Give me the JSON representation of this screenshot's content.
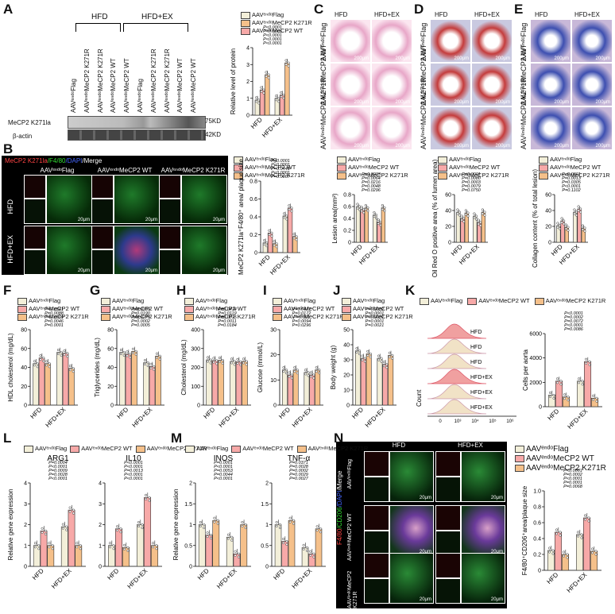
{
  "panel_letters": [
    "A",
    "B",
    "C",
    "D",
    "E",
    "F",
    "G",
    "H",
    "I",
    "J",
    "K",
    "L",
    "M",
    "N"
  ],
  "groups": {
    "hfd": "HFD",
    "hfdex": "HFD+EX"
  },
  "conditions": {
    "flag": "AAVᵉⁿᵈᵒFlag",
    "wt": "AAVᵉⁿᵈᵒMeCP2 WT",
    "k271r": "AAVᵉⁿᵈᵒMeCP2 K271R"
  },
  "colors": {
    "flag": "#f3efd9",
    "wt": "#f7a9a8",
    "k271r": "#f5c08a",
    "red": "#e0403a",
    "green": "#2e9e3a",
    "blue": "#3a50c8",
    "he": "#e8a7c8",
    "oro": "#c43c3c",
    "masson": "#3d4fb0"
  },
  "panelA": {
    "lanes": [
      "AAVᵉⁿᵈᵒFlag",
      "AAVᵉⁿᵈᵒMeCP2 K271R",
      "AAVᵉⁿᵈᵒMeCP2 K271R",
      "AAVᵉⁿᵈᵒMeCP2 WT",
      "AAVᵉⁿᵈᵒMeCP2 WT",
      "AAVᵉⁿᵈᵒFlag",
      "AAVᵉⁿᵈᵒMeCP2 K271R",
      "AAVᵉⁿᵈᵒMeCP2 K271R",
      "AAVᵉⁿᵈᵒMeCP2 WT",
      "AAVᵉⁿᵈᵒMeCP2 WT"
    ],
    "bands": [
      {
        "name": "MeCP2 K271la",
        "kd": "75KD"
      },
      {
        "name": "β-actin",
        "kd": "42KD"
      }
    ]
  },
  "panelB": {
    "stain_title": {
      "a": "MeCP2 K271la",
      "b": "/F4/80",
      "c": "/DAPI",
      "d": "/Merge"
    },
    "columns": [
      "AAVᵉⁿᵈᵒFlag",
      "AAVᵉⁿᵈᵒMeCP2 WT",
      "AAVᵉⁿᵈᵒMeCP2 K271R"
    ],
    "rows": [
      "HFD",
      "HFD+EX"
    ],
    "scale": "20μm"
  },
  "panelC": {
    "columns": [
      "HFD",
      "HFD+EX"
    ],
    "rows": [
      "AAVᵉⁿᵈᵒFlag",
      "AAVᵉⁿᵈᵒMeCP2 WT",
      "AAVᵉⁿᵈᵒMeCP2 K271R"
    ],
    "row_label_flag": "AAVᵉⁿᵈᵒFlag",
    "scale": "200μm"
  },
  "panelN": {
    "columns": [
      "HFD",
      "HFD+EX"
    ],
    "rows": [
      "AAVᵉⁿᵈᵒFlag",
      "AAVᵉⁿᵈᵒMeCP2 WT",
      "AAVᵉⁿᵈᵒMeCP2 K271R"
    ],
    "stain_title": {
      "a": "F4/80",
      "b": "/CD206",
      "c": "/DAPI",
      "d": "/Merge"
    },
    "scale": "20μm"
  },
  "panelK": {
    "hist_labels": [
      "HFD",
      "HFD",
      "HFD",
      "HFD+EX",
      "HFD+EX",
      "HFD+EX"
    ],
    "xaxis": "Count",
    "xticks": [
      "0",
      "10³",
      "10⁴",
      "10⁵",
      "10⁶"
    ]
  },
  "chart_data": [
    {
      "id": "A",
      "type": "bar",
      "ylabel": "Relative level of protein",
      "ylim": [
        0,
        4
      ],
      "yticks": [
        0,
        1,
        2,
        3,
        4
      ],
      "categories": [
        "HFD",
        "HFD+EX"
      ],
      "series": [
        {
          "name": "AAVᵉⁿᵈᵒFlag",
          "values": [
            0.9,
            1.0
          ]
        },
        {
          "name": "AAVᵉⁿᵈᵒMeCP2 K271R",
          "values": [
            1.5,
            1.2
          ]
        },
        {
          "name": "AAVᵉⁿᵈᵒMeCP2 WT",
          "values": [
            2.4,
            3.1
          ]
        }
      ],
      "pvalues": [
        "P<0.0001",
        "P<0.0001",
        "P<0.0001",
        "P<0.0001",
        "P<0.0001"
      ]
    },
    {
      "id": "B",
      "type": "bar",
      "ylabel": "MeCP2 K271la⁺F4/80⁺ area/ plaque size",
      "ylim": [
        0,
        0.8
      ],
      "yticks": [
        0.0,
        0.2,
        0.4,
        0.6,
        0.8
      ],
      "categories": [
        "HFD",
        "HFD+EX"
      ],
      "series": [
        {
          "name": "AAVᵉⁿᵈᵒFlag",
          "values": [
            0.11,
            0.41
          ]
        },
        {
          "name": "AAVᵉⁿᵈᵒMeCP2 WT",
          "values": [
            0.22,
            0.5
          ]
        },
        {
          "name": "AAVᵉⁿᵈᵒMeCP2 K271R",
          "values": [
            0.1,
            0.18
          ]
        }
      ],
      "pvalues": [
        "P=0.0007",
        "P<0.0001",
        "P=0.0449",
        "P<0.0001",
        "P<0.0001"
      ]
    },
    {
      "id": "C",
      "type": "bar",
      "ylabel": "Lesion area(mm²)",
      "ylim": [
        0,
        0.8
      ],
      "yticks": [
        0.0,
        0.2,
        0.4,
        0.6,
        0.8
      ],
      "categories": [
        "HFD",
        "HFD+EX"
      ],
      "series": [
        {
          "name": "AAVᵉⁿᵈᵒFlag",
          "values": [
            0.6,
            0.46
          ]
        },
        {
          "name": "AAVᵉⁿᵈᵒMeCP2 WT",
          "values": [
            0.55,
            0.34
          ]
        },
        {
          "name": "AAVᵉⁿᵈᵒMeCP2 K271R",
          "values": [
            0.58,
            0.58
          ]
        }
      ],
      "pvalues": [
        "P=0.0296",
        "P=0.0048",
        "P=0.0216",
        "P=0.0064",
        "P=0.0003"
      ]
    },
    {
      "id": "D",
      "type": "bar",
      "ylabel": "Oil Red O positive area (% of lumen area)",
      "ylim": [
        0,
        60
      ],
      "yticks": [
        0,
        20,
        40,
        60
      ],
      "categories": [
        "HFD",
        "HFD+EX"
      ],
      "series": [
        {
          "name": "AAVᵉⁿᵈᵒFlag",
          "values": [
            38,
            33
          ]
        },
        {
          "name": "AAVᵉⁿᵈᵒMeCP2 WT",
          "values": [
            30,
            25
          ]
        },
        {
          "name": "AAVᵉⁿᵈᵒMeCP2 K271R",
          "values": [
            37,
            38
          ]
        }
      ],
      "pvalues": [
        "P=0.0750",
        "P=0.0079",
        "P=0.0003",
        "P=0.0080",
        "P=0.0001"
      ]
    },
    {
      "id": "E",
      "type": "bar",
      "ylabel": "Collagen content (% of total lesion)",
      "ylim": [
        0,
        60
      ],
      "yticks": [
        0,
        20,
        40,
        60
      ],
      "categories": [
        "HFD",
        "HFD+EX"
      ],
      "series": [
        {
          "name": "AAVᵉⁿᵈᵒFlag",
          "values": [
            21,
            38
          ]
        },
        {
          "name": "AAVᵉⁿᵈᵒMeCP2 WT",
          "values": [
            27,
            42
          ]
        },
        {
          "name": "AAVᵉⁿᵈᵒMeCP2 K271R",
          "values": [
            19,
            18
          ]
        }
      ],
      "pvalues": [
        "P=0.1102",
        "P<0.0001",
        "P=0.0305",
        "P=0.0013",
        "P<0.0001"
      ]
    },
    {
      "id": "F",
      "type": "bar",
      "ylabel": "HDL cholesterol (mg/dL)",
      "ylim": [
        0,
        80
      ],
      "yticks": [
        0,
        20,
        40,
        60,
        80
      ],
      "categories": [
        "HFD",
        "HFD+EX"
      ],
      "series": [
        {
          "name": "AAVᵉⁿᵈᵒFlag",
          "values": [
            44,
            56
          ]
        },
        {
          "name": "AAVᵉⁿᵈᵒMeCP2 WT",
          "values": [
            50,
            55
          ]
        },
        {
          "name": "AAVᵉⁿᵈᵒMeCP2 K271R",
          "values": [
            44,
            39
          ]
        }
      ],
      "pvalues": [
        "P=0.0001",
        "P=0.0046",
        "P=0.0009",
        "P=0.0088",
        "P=0.0341"
      ]
    },
    {
      "id": "G",
      "type": "bar",
      "ylabel": "Triglycerides (mg/dL)",
      "ylim": [
        0,
        80
      ],
      "yticks": [
        0,
        20,
        40,
        60,
        80
      ],
      "categories": [
        "HFD",
        "HFD+EX"
      ],
      "series": [
        {
          "name": "AAVᵉⁿᵈᵒFlag",
          "values": [
            56,
            45
          ]
        },
        {
          "name": "AAVᵉⁿᵈᵒMeCP2 WT",
          "values": [
            54,
            41
          ]
        },
        {
          "name": "AAVᵉⁿᵈᵒMeCP2 K271R",
          "values": [
            57,
            52
          ]
        }
      ],
      "pvalues": [
        "P=0.0005",
        "P=0.0002",
        "P=0.0278",
        "P=0.0190",
        "P=0.0359"
      ]
    },
    {
      "id": "H",
      "type": "bar",
      "ylabel": "Cholesterol (mg/dL)",
      "ylim": [
        0,
        400
      ],
      "yticks": [
        0,
        100,
        200,
        300,
        400
      ],
      "categories": [
        "HFD",
        "HFD+EX"
      ],
      "series": [
        {
          "name": "AAVᵉⁿᵈᵒFlag",
          "values": [
            240,
            232
          ]
        },
        {
          "name": "AAVᵉⁿᵈᵒMeCP2 WT",
          "values": [
            236,
            230
          ]
        },
        {
          "name": "AAVᵉⁿᵈᵒMeCP2 K271R",
          "values": [
            238,
            232
          ]
        }
      ],
      "pvalues": [
        "P=0.0184",
        "P=0.0011",
        "P=0.0015",
        "P=0.0119",
        "P=0.0474"
      ]
    },
    {
      "id": "I",
      "type": "bar",
      "ylabel": "Glucose (mmol/L)",
      "ylim": [
        0,
        30
      ],
      "yticks": [
        0,
        10,
        20,
        30
      ],
      "categories": [
        "HFD",
        "HFD+EX"
      ],
      "series": [
        {
          "name": "AAVᵉⁿᵈᵒFlag",
          "values": [
            14,
            13
          ]
        },
        {
          "name": "AAVᵉⁿᵈᵒMeCP2 WT",
          "values": [
            12,
            12
          ]
        },
        {
          "name": "AAVᵉⁿᵈᵒMeCP2 K271R",
          "values": [
            14,
            14
          ]
        }
      ],
      "pvalues": [
        "P=0.0296",
        "P=0.0094",
        "P=0.001",
        "P=0.0172",
        "P=0.0471"
      ]
    },
    {
      "id": "J",
      "type": "bar",
      "ylabel": "Body weight (g)",
      "ylim": [
        0,
        50
      ],
      "yticks": [
        0,
        10,
        20,
        30,
        40,
        50
      ],
      "categories": [
        "HFD",
        "HFD+EX"
      ],
      "series": [
        {
          "name": "AAVᵉⁿᵈᵒFlag",
          "values": [
            36,
            31
          ]
        },
        {
          "name": "AAVᵉⁿᵈᵒMeCP2 WT",
          "values": [
            31,
            27
          ]
        },
        {
          "name": "AAVᵉⁿᵈᵒMeCP2 K271R",
          "values": [
            34,
            33
          ]
        }
      ],
      "pvalues": [
        "P=0.0021",
        "P=0.0001",
        "P<0.0001",
        "P=0.0001",
        "P=0.0002"
      ]
    },
    {
      "id": "K",
      "type": "bar",
      "ylabel": "Cells per aorta",
      "ylim": [
        0,
        6000
      ],
      "yticks": [
        0,
        2000,
        4000,
        6000
      ],
      "categories": [
        "HFD",
        "HFD+EX"
      ],
      "series": [
        {
          "name": "AAVᵉⁿᵈᵒFlag",
          "values": [
            950,
            2100
          ]
        },
        {
          "name": "AAVᵉⁿᵈᵒMeCP2 WT",
          "values": [
            2100,
            3700
          ]
        },
        {
          "name": "AAVᵉⁿᵈᵒMeCP2 K271R",
          "values": [
            800,
            700
          ]
        }
      ],
      "pvalues": [
        "P=0.0086",
        "P<0.0001",
        "P=0.0072",
        "P=0.0002",
        "P<0.0001"
      ]
    },
    {
      "id": "L1",
      "type": "bar",
      "title": "ARG1",
      "ylabel": "Relative gene expression",
      "ylim": [
        0,
        4
      ],
      "yticks": [
        0,
        1,
        2,
        3,
        4
      ],
      "categories": [
        "HFD",
        "HFD+EX"
      ],
      "series": [
        {
          "name": "AAVᵉⁿᵈᵒFlag",
          "values": [
            1.0,
            1.9
          ]
        },
        {
          "name": "AAVᵉⁿᵈᵒMeCP2 WT",
          "values": [
            1.7,
            2.7
          ]
        },
        {
          "name": "AAVᵉⁿᵈᵒMeCP2 K271R",
          "values": [
            1.0,
            1.0
          ]
        }
      ],
      "pvalues": [
        "P<0.0001",
        "P=0.0028",
        "P=0.0009",
        "P<0.0001",
        "P=0.0004"
      ]
    },
    {
      "id": "L2",
      "type": "bar",
      "title": "IL10",
      "ylabel": "",
      "ylim": [
        0,
        4
      ],
      "yticks": [
        0,
        1,
        2,
        3,
        4
      ],
      "categories": [
        "HFD",
        "HFD+EX"
      ],
      "series": [
        {
          "name": "AAVᵉⁿᵈᵒFlag",
          "values": [
            1.0,
            2.0
          ]
        },
        {
          "name": "AAVᵉⁿᵈᵒMeCP2 WT",
          "values": [
            1.8,
            3.3
          ]
        },
        {
          "name": "AAVᵉⁿᵈᵒMeCP2 K271R",
          "values": [
            0.9,
            1.0
          ]
        }
      ],
      "pvalues": [
        "P<0.0001",
        "P<0.0001",
        "P=0.0013",
        "P<0.0001",
        "P<0.0001"
      ]
    },
    {
      "id": "M1",
      "type": "bar",
      "title": "INOS",
      "ylabel": "Relative gene expression",
      "ylim": [
        0,
        2.0
      ],
      "yticks": [
        0.0,
        0.5,
        1.0,
        1.5,
        2.0
      ],
      "categories": [
        "HFD",
        "HFD+EX"
      ],
      "series": [
        {
          "name": "AAVᵉⁿᵈᵒFlag",
          "values": [
            1.0,
            0.7
          ]
        },
        {
          "name": "AAVᵉⁿᵈᵒMeCP2 WT",
          "values": [
            0.75,
            0.3
          ]
        },
        {
          "name": "AAVᵉⁿᵈᵒMeCP2 K271R",
          "values": [
            1.1,
            1.0
          ]
        }
      ],
      "pvalues": [
        "P<0.0001",
        "P=0.0044",
        "P=0.0053",
        "P<0.0001",
        "P=0.0001"
      ]
    },
    {
      "id": "M2",
      "type": "bar",
      "title": "TNF-α",
      "ylabel": "",
      "ylim": [
        0,
        2.0
      ],
      "yticks": [
        0.0,
        0.5,
        1.0,
        1.5,
        2.0
      ],
      "categories": [
        "HFD",
        "HFD+EX"
      ],
      "series": [
        {
          "name": "AAVᵉⁿᵈᵒFlag",
          "values": [
            1.0,
            0.45
          ]
        },
        {
          "name": "AAVᵉⁿᵈᵒMeCP2 WT",
          "values": [
            0.6,
            0.3
          ]
        },
        {
          "name": "AAVᵉⁿᵈᵒMeCP2 K271R",
          "values": [
            1.1,
            0.9
          ]
        }
      ],
      "pvalues": [
        "P=0.0027",
        "P=0.0029",
        "P=0.0002",
        "P=0.0028",
        "P=0.0371"
      ]
    },
    {
      "id": "N",
      "type": "bar",
      "ylabel": "F4/80⁺CD206⁺area/plaque size",
      "ylim": [
        0,
        1.0
      ],
      "yticks": [
        0.0,
        0.2,
        0.4,
        0.6,
        0.8,
        1.0
      ],
      "categories": [
        "HFD",
        "HFD+EX"
      ],
      "series": [
        {
          "name": "AAVᵉⁿᵈᵒFlag",
          "values": [
            0.25,
            0.45
          ]
        },
        {
          "name": "AAVᵉⁿᵈᵒMeCP2 WT",
          "values": [
            0.48,
            0.66
          ]
        },
        {
          "name": "AAVᵉⁿᵈᵒMeCP2 K271R",
          "values": [
            0.2,
            0.24
          ]
        }
      ],
      "pvalues": [
        "P=0.0068",
        "P=0.0001",
        "P<0.0001",
        "P=0.0002",
        "P<0.0001"
      ]
    }
  ]
}
